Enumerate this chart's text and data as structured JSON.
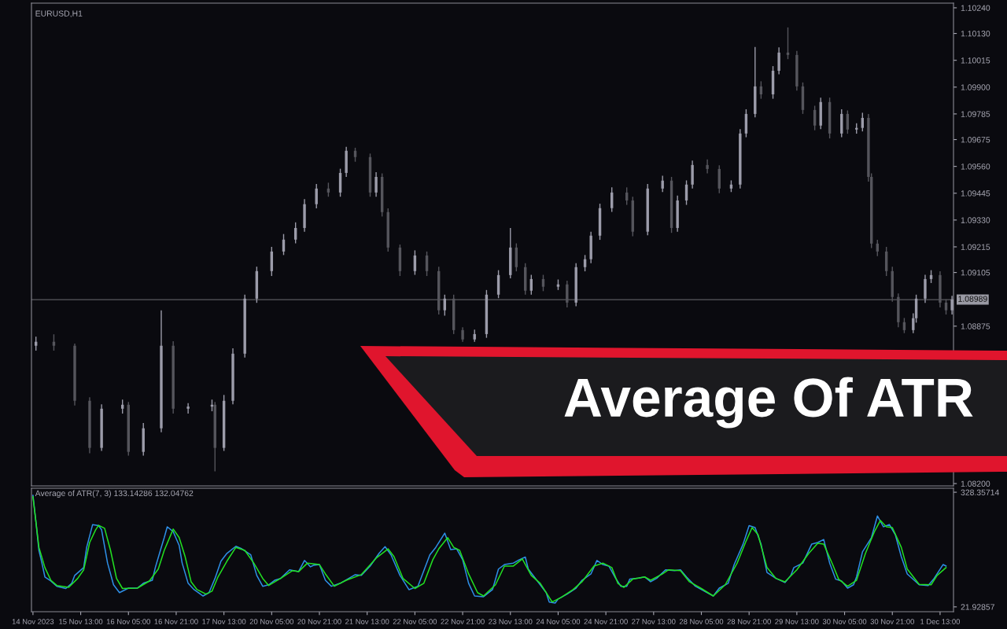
{
  "chart_data": [
    {
      "type": "candlestick",
      "title": "EURUSD,H1",
      "annotations": [
        "Average Of ATR"
      ],
      "tick_labels": "y",
      "grid": false,
      "categories": [
        null,
        null,
        null,
        null,
        null,
        null,
        null,
        null,
        null,
        null,
        null,
        null,
        null,
        null,
        null,
        null,
        null,
        null,
        null,
        null,
        null,
        null,
        null,
        null,
        null,
        null,
        null,
        null,
        null,
        null,
        null,
        null,
        null,
        null,
        null,
        null,
        null,
        null,
        null,
        null,
        null,
        null,
        null,
        null,
        null,
        null,
        null,
        null,
        null,
        null,
        null,
        null,
        null,
        null,
        null,
        null,
        null,
        null,
        null,
        null,
        null,
        null,
        null,
        null,
        null,
        null,
        null,
        null,
        null,
        null,
        null,
        null,
        null,
        null,
        null,
        null,
        null,
        null,
        null,
        null,
        null,
        null,
        null,
        null,
        null,
        null,
        null,
        null,
        null,
        null,
        null,
        null,
        null,
        null,
        null,
        null,
        null,
        null,
        null,
        null,
        null,
        null,
        null,
        null,
        null,
        null,
        null,
        null,
        null,
        null,
        null,
        null,
        null,
        null,
        null,
        null,
        null,
        null,
        null,
        null,
        null,
        null,
        null,
        null,
        null,
        null,
        null,
        null,
        null,
        null,
        null,
        null,
        null,
        null,
        null,
        null,
        null,
        null,
        null,
        null,
        null,
        null,
        null,
        null,
        null,
        null,
        null,
        null,
        null,
        null,
        null,
        null,
        null,
        null,
        null,
        null,
        null,
        null,
        null,
        null,
        null,
        null,
        null,
        null,
        null,
        null,
        null,
        null,
        null,
        null,
        null,
        null,
        null,
        null,
        null,
        null,
        null,
        null,
        null,
        null,
        null,
        null,
        null,
        null,
        null,
        null,
        null,
        null,
        null,
        null,
        null,
        null,
        null,
        null,
        null,
        null,
        null,
        null,
        null,
        null,
        null,
        null,
        null,
        null,
        null,
        null,
        null,
        null,
        null,
        null,
        null,
        null,
        null,
        null,
        null,
        null,
        null,
        null,
        null,
        null,
        null,
        null,
        null,
        null,
        null,
        null,
        null,
        null,
        null,
        null,
        null,
        null,
        null,
        null,
        null,
        null,
        null,
        null,
        null,
        null,
        null,
        null,
        null,
        null,
        null,
        null,
        null,
        null,
        null,
        null,
        null,
        null,
        null,
        null,
        null,
        null,
        null,
        null,
        null,
        null,
        null,
        null,
        null,
        null,
        null,
        null,
        null,
        null,
        null,
        null,
        null,
        null,
        null,
        null,
        null,
        null,
        null,
        null,
        null,
        null,
        null,
        null,
        null,
        null,
        null,
        null,
        null,
        null,
        null,
        null,
        null,
        null,
        null,
        null,
        null,
        null,
        null,
        null,
        null,
        null,
        null,
        null,
        null,
        null,
        null,
        null,
        null,
        null,
        null
      ],
      "ohlc": [
        null,
        [
          1.08791,
          1.0883,
          1.0877,
          1.08808
        ],
        null,
        null,
        null,
        null,
        null,
        [
          1.08808,
          1.0884,
          1.0877,
          1.08791
        ],
        null,
        null,
        null,
        null,
        null,
        null,
        [
          1.08791,
          1.088,
          1.08535,
          1.08555
        ],
        null,
        null,
        null,
        null,
        [
          1.08555,
          1.0857,
          1.0833,
          1.08353
        ],
        null,
        null,
        null,
        [
          1.08353,
          1.0854,
          1.0834,
          1.08521
        ],
        null,
        null,
        null,
        null,
        null,
        null,
        [
          1.08521,
          1.0856,
          1.085,
          1.08538
        ],
        null,
        [
          1.08538,
          1.0855,
          1.0832,
          1.08336
        ],
        null,
        null,
        null,
        null,
        [
          1.08336,
          1.0846,
          1.0832,
          1.08437
        ],
        null,
        null,
        null,
        null,
        null,
        [
          1.08437,
          1.08943,
          1.0842,
          1.08791
        ],
        null,
        null,
        null,
        [
          1.08791,
          1.0881,
          1.085,
          1.08521
        ],
        null,
        null,
        null,
        null,
        [
          1.08521,
          1.08545,
          1.085,
          1.0853
        ],
        null,
        null,
        null,
        null,
        null,
        null,
        null,
        [
          1.0853,
          1.0856,
          1.0851,
          1.08538
        ],
        [
          1.08538,
          1.0855,
          1.08252,
          1.08353
        ],
        null,
        null,
        [
          1.08353,
          1.0858,
          1.0834,
          1.08555
        ],
        null,
        null,
        [
          1.08555,
          1.0878,
          1.0854,
          1.08757
        ],
        null,
        null,
        null,
        [
          1.08757,
          1.0901,
          1.0874,
          1.08993
        ],
        null,
        null,
        null,
        [
          1.08993,
          1.0913,
          1.08975,
          1.09111
        ],
        null,
        null,
        null,
        null,
        [
          1.09111,
          1.09215,
          1.0909,
          1.09195
        ],
        null,
        null,
        null,
        [
          1.09195,
          1.0927,
          1.0918,
          1.09246
        ],
        null,
        null,
        null,
        [
          1.09246,
          1.0932,
          1.0923,
          1.09296
        ],
        null,
        null,
        [
          1.09296,
          1.0942,
          1.0928,
          1.09398
        ],
        null,
        null,
        null,
        [
          1.09398,
          1.09485,
          1.0938,
          1.09465
        ],
        null,
        null,
        null,
        [
          1.09465,
          1.0949,
          1.0943,
          1.09448
        ],
        null,
        null,
        null,
        [
          1.09448,
          1.0955,
          1.0943,
          1.09532
        ],
        null,
        [
          1.09532,
          1.09644,
          1.09515,
          1.09627
        ],
        null,
        null,
        [
          1.09627,
          1.0964,
          1.0958,
          1.096
        ],
        null,
        null,
        null,
        null,
        [
          1.096,
          1.09615,
          1.0943,
          1.09448
        ],
        null,
        [
          1.09448,
          1.09535,
          1.0943,
          1.09515
        ],
        null,
        [
          1.09515,
          1.0953,
          1.09345,
          1.09364
        ],
        null,
        [
          1.09364,
          1.0938,
          1.09195,
          1.09212
        ],
        null,
        null,
        null,
        [
          1.09212,
          1.09225,
          1.0909,
          1.09111
        ],
        null,
        null,
        null,
        null,
        [
          1.09111,
          1.092,
          1.09095,
          1.09178
        ],
        null,
        null,
        null,
        [
          1.09178,
          1.09195,
          1.0909,
          1.09111
        ],
        null,
        null,
        null,
        [
          1.09111,
          1.0913,
          1.08925,
          1.08943
        ],
        null,
        [
          1.08943,
          1.0901,
          1.0892,
          1.08993
        ],
        null,
        null,
        [
          1.08993,
          1.0901,
          1.08841,
          1.08858
        ],
        null,
        null,
        [
          1.08858,
          1.0887,
          1.08808,
          1.08818
        ],
        null,
        null,
        null,
        [
          1.08818,
          1.0886,
          1.08808,
          1.08841
        ],
        null,
        null,
        null,
        [
          1.08841,
          1.0903,
          1.08825,
          1.0901
        ],
        null,
        null,
        null,
        [
          1.0901,
          1.09115,
          1.08995,
          1.09094
        ],
        null,
        null,
        null,
        [
          1.09094,
          1.09296,
          1.0908,
          1.09212
        ],
        null,
        [
          1.09212,
          1.0923,
          1.0911,
          1.09128
        ],
        null,
        null,
        [
          1.09128,
          1.09145,
          1.0901,
          1.09027
        ],
        null,
        [
          1.09027,
          1.09095,
          1.0901,
          1.09077
        ],
        null,
        null,
        null,
        [
          1.09077,
          1.09095,
          1.09025,
          1.09044
        ],
        null,
        null,
        null,
        null,
        [
          1.09044,
          1.09075,
          1.0903,
          1.09054
        ],
        null,
        null,
        [
          1.09054,
          1.0907,
          1.08955,
          1.08976
        ],
        null,
        null,
        [
          1.08976,
          1.09145,
          1.0896,
          1.09128
        ],
        null,
        null,
        [
          1.09128,
          1.0918,
          1.0911,
          1.09162
        ],
        null,
        [
          1.09162,
          1.0928,
          1.09145,
          1.09263
        ],
        null,
        null,
        [
          1.09263,
          1.094,
          1.09245,
          1.09381
        ],
        null,
        null,
        null,
        [
          1.09381,
          1.0947,
          1.09365,
          1.09448
        ],
        null,
        null,
        null,
        null,
        [
          1.09448,
          1.0947,
          1.09395,
          1.09414
        ],
        null,
        [
          1.09414,
          1.0943,
          1.0926,
          1.0928
        ],
        null,
        null,
        null,
        null,
        [
          1.0928,
          1.09485,
          1.09265,
          1.09465
        ],
        null,
        null,
        null,
        null,
        [
          1.09465,
          1.0952,
          1.0945,
          1.09499
        ],
        null,
        null,
        [
          1.09499,
          1.09515,
          1.09275,
          1.09296
        ],
        null,
        [
          1.09296,
          1.09435,
          1.0928,
          1.09414
        ],
        null,
        null,
        [
          1.09414,
          1.095,
          1.09395,
          1.09482
        ],
        null,
        [
          1.09482,
          1.09585,
          1.09465,
          1.09566
        ],
        null,
        null,
        null,
        null,
        [
          1.09566,
          1.0959,
          1.0953,
          1.09549
        ],
        null,
        null,
        null,
        [
          1.09549,
          1.09565,
          1.09445,
          1.09465
        ],
        null,
        null,
        null,
        [
          1.09465,
          1.095,
          1.0945,
          1.09482
        ],
        null,
        null,
        [
          1.09482,
          1.0972,
          1.09465,
          1.09701
        ],
        null,
        [
          1.09701,
          1.09805,
          1.09685,
          1.09785
        ],
        null,
        null,
        [
          1.09785,
          1.10072,
          1.0977,
          1.09903
        ],
        null,
        [
          1.09903,
          1.09925,
          1.0985,
          1.09869
        ],
        null,
        null,
        null,
        [
          1.09869,
          1.0999,
          1.0985,
          1.0997
        ],
        null,
        [
          1.0997,
          1.1007,
          1.09955,
          1.10048
        ],
        null,
        null,
        [
          1.10048,
          1.10156,
          1.1002,
          1.10038
        ],
        null,
        null,
        [
          1.10038,
          1.10055,
          1.09885,
          1.09903
        ],
        null,
        [
          1.09903,
          1.0992,
          1.09785,
          1.09802
        ],
        null,
        null,
        null,
        [
          1.09802,
          1.0982,
          1.09715,
          1.09735
        ],
        null,
        [
          1.09735,
          1.09855,
          1.0972,
          1.09836
        ],
        null,
        null,
        [
          1.09836,
          1.09855,
          1.0968,
          1.09701
        ],
        null,
        null,
        null,
        [
          1.09701,
          1.09805,
          1.09685,
          1.09785
        ],
        null,
        [
          1.09785,
          1.098,
          1.097,
          1.09718
        ],
        null,
        null,
        [
          1.09718,
          1.09745,
          1.097,
          1.09725
        ],
        null,
        [
          1.09725,
          1.0979,
          1.0971,
          1.09768
        ],
        null,
        [
          1.09768,
          1.09785,
          1.09495,
          1.09515
        ],
        [
          1.09515,
          1.0953,
          1.0921,
          1.09229
        ],
        null,
        [
          1.09229,
          1.09245,
          1.09175,
          1.09195
        ],
        null,
        null,
        [
          1.09195,
          1.09215,
          1.0909,
          1.09111
        ],
        null,
        [
          1.09111,
          1.0913,
          1.0898,
          1.09
        ],
        null,
        [
          1.09,
          1.09015,
          1.0887,
          1.08892
        ],
        null,
        [
          1.08892,
          1.0891,
          1.08845,
          1.08858
        ],
        null,
        null,
        [
          1.08858,
          1.0893,
          1.08845,
          1.08909
        ],
        [
          1.08909,
          1.0901,
          1.0889,
          1.08993
        ],
        null,
        null,
        [
          1.08993,
          1.09095,
          1.08975,
          1.09077
        ],
        null,
        [
          1.09077,
          1.09115,
          1.0906,
          1.09094
        ],
        null,
        null,
        [
          1.09094,
          1.0911,
          1.08955,
          1.08976
        ],
        null,
        [
          1.08976,
          1.0899,
          1.08925,
          1.08943
        ],
        null,
        [
          1.08943,
          1.09005,
          1.08925,
          1.08989
        ]
      ],
      "ylim": [
        1.0819,
        1.1026
      ],
      "yticks": [
        {
          "value": 1.1024,
          "label": "1.10240"
        },
        {
          "value": 1.1013,
          "label": "1.10130"
        },
        {
          "value": 1.10015,
          "label": "1.10015"
        },
        {
          "value": 1.099,
          "label": "1.09900"
        },
        {
          "value": 1.09785,
          "label": "1.09785"
        },
        {
          "value": 1.09675,
          "label": "1.09675"
        },
        {
          "value": 1.0956,
          "label": "1.09560"
        },
        {
          "value": 1.09445,
          "label": "1.09445"
        },
        {
          "value": 1.0933,
          "label": "1.09330"
        },
        {
          "value": 1.09215,
          "label": "1.09215"
        },
        {
          "value": 1.09105,
          "label": "1.09105"
        },
        {
          "value": 1.08875,
          "label": "1.08875"
        },
        {
          "value": 1.082,
          "label": "1.08200"
        }
      ],
      "ref_lines": [
        {
          "axis": "y",
          "value": 1.08989,
          "label": "1.08989",
          "color": "#5a5a60"
        }
      ]
    },
    {
      "type": "line",
      "title": "Average of ATR(7, 3) 133.14286 132.04762",
      "grid": false,
      "marker": "none",
      "line_style": "solid",
      "categories": [
        "14 Nov 2023",
        null,
        null,
        null,
        null,
        null,
        null,
        null,
        null,
        null,
        null,
        null,
        null,
        null,
        null,
        null,
        "15 Nov 13:00",
        null,
        null,
        null,
        null,
        null,
        null,
        null,
        null,
        null,
        null,
        null,
        null,
        null,
        null,
        null,
        "16 Nov 05:00",
        null,
        null,
        null,
        null,
        null,
        null,
        null,
        null,
        null,
        null,
        null,
        null,
        null,
        null,
        null,
        "16 Nov 21:00",
        null,
        null,
        null,
        null,
        null,
        null,
        null,
        null,
        null,
        null,
        null,
        null,
        null,
        null,
        null,
        "17 Nov 13:00",
        null,
        null,
        null,
        null,
        null,
        null,
        null,
        null,
        null,
        null,
        null,
        null,
        null,
        null,
        null,
        "20 Nov 05:00",
        null,
        null,
        null,
        null,
        null,
        null,
        null,
        null,
        null,
        null,
        null,
        null,
        null,
        null,
        null,
        "20 Nov 21:00",
        null,
        null,
        null,
        null,
        null,
        null,
        null,
        null,
        null,
        null,
        null,
        null,
        null,
        null,
        null,
        "21 Nov 13:00",
        null,
        null,
        null,
        null,
        null,
        null,
        null,
        null,
        null,
        null,
        null,
        null,
        null,
        null,
        null,
        "22 Nov 05:00",
        null,
        null,
        null,
        null,
        null,
        null,
        null,
        null,
        null,
        null,
        null,
        null,
        null,
        null,
        null,
        "22 Nov 21:00",
        null,
        null,
        null,
        null,
        null,
        null,
        null,
        null,
        null,
        null,
        null,
        null,
        null,
        null,
        null,
        "23 Nov 13:00",
        null,
        null,
        null,
        null,
        null,
        null,
        null,
        null,
        null,
        null,
        null,
        null,
        null,
        null,
        null,
        "24 Nov 05:00",
        null,
        null,
        null,
        null,
        null,
        null,
        null,
        null,
        null,
        null,
        null,
        null,
        null,
        null,
        null,
        "24 Nov 21:00",
        null,
        null,
        null,
        null,
        null,
        null,
        null,
        null,
        null,
        null,
        null,
        null,
        null,
        null,
        null,
        "27 Nov 13:00",
        null,
        null,
        null,
        null,
        null,
        null,
        null,
        null,
        null,
        null,
        null,
        null,
        null,
        null,
        null,
        "28 Nov 05:00",
        null,
        null,
        null,
        null,
        null,
        null,
        null,
        null,
        null,
        null,
        null,
        null,
        null,
        null,
        null,
        "28 Nov 21:00",
        null,
        null,
        null,
        null,
        null,
        null,
        null,
        null,
        null,
        null,
        null,
        null,
        null,
        null,
        null,
        "29 Nov 13:00",
        null,
        null,
        null,
        null,
        null,
        null,
        null,
        null,
        null,
        null,
        null,
        null,
        null,
        null,
        null,
        "30 Nov 05:00",
        null,
        null,
        null,
        null,
        null,
        null,
        null,
        null,
        null,
        null,
        null,
        null,
        null,
        null,
        null,
        "30 Nov 21:00",
        null,
        null,
        null,
        null,
        null,
        null,
        null,
        null,
        null,
        null,
        null,
        null,
        null,
        null,
        null,
        "1 Dec 13:00",
        null,
        null,
        null,
        null
      ],
      "ylim": [
        9,
        339
      ],
      "yticks": [
        328.35714,
        21.92857
      ],
      "series": [
        {
          "color": "#2e8fe6",
          "values": [
            320,
            249,
            173,
            139,
            102,
            null,
            91,
            null,
            77,
            null,
            null,
            71,
            null,
            85,
            106,
            null,
            null,
            127,
            181,
            null,
            242,
            null,
            239,
            228,
            null,
            139,
            null,
            81,
            null,
            60,
            null,
            null,
            72,
            null,
            null,
            72,
            null,
            85,
            null,
            null,
            93,
            127,
            null,
            181,
            207,
            236,
            null,
            223,
            null,
            186,
            139,
            null,
            85,
            null,
            68,
            null,
            null,
            51,
            null,
            60,
            null,
            98,
            null,
            144,
            null,
            165,
            null,
            null,
            184,
            null,
            177,
            null,
            null,
            161,
            null,
            106,
            null,
            77,
            null,
            81,
            null,
            93,
            null,
            98,
            null,
            null,
            121,
            null,
            null,
            116,
            null,
            146,
            null,
            129,
            133,
            null,
            135,
            null,
            93,
            null,
            77,
            null,
            null,
            85,
            null,
            null,
            null,
            null,
            108,
            null,
            106,
            null,
            null,
            131,
            null,
            null,
            165,
            null,
            183,
            null,
            161,
            null,
            null,
            106,
            null,
            null,
            68,
            null,
            null,
            77,
            null,
            null,
            null,
            161,
            null,
            181,
            null,
            null,
            219,
            null,
            175,
            null,
            177,
            null,
            148,
            null,
            85,
            null,
            51,
            null,
            null,
            49,
            null,
            null,
            68,
            null,
            123,
            null,
            135,
            null,
            null,
            139,
            null,
            148,
            null,
            155,
            123,
            null,
            102,
            null,
            81,
            null,
            60,
            35,
            null,
            32,
            43,
            null,
            null,
            56,
            null,
            null,
            72,
            null,
            93,
            null,
            null,
            110,
            null,
            146,
            null,
            135,
            null,
            131,
            null,
            102,
            null,
            77,
            null,
            77,
            96,
            null,
            null,
            99,
            null,
            102,
            null,
            89,
            null,
            98,
            null,
            null,
            121,
            null,
            null,
            119,
            null,
            121,
            null,
            102,
            null,
            null,
            77,
            null,
            null,
            64,
            null,
            null,
            51,
            null,
            72,
            null,
            null,
            85,
            null,
            135,
            null,
            null,
            190,
            null,
            239,
            null,
            234,
            null,
            190,
            null,
            114,
            null,
            null,
            98,
            null,
            null,
            87,
            null,
            106,
            127,
            null,
            null,
            139,
            null,
            null,
            190,
            null,
            194,
            null,
            202,
            null,
            139,
            null,
            96,
            null,
            91,
            null,
            72,
            null,
            81,
            102,
            null,
            169,
            null,
            null,
            207,
            null,
            265,
            null,
            236,
            null,
            242,
            null,
            215,
            null,
            156,
            null,
            110,
            null,
            null,
            null,
            81,
            null,
            null,
            79,
            null,
            98,
            null,
            null,
            135,
            131,
            null,
            null
          ]
        },
        {
          "color": "#22e022",
          "values": [
            316,
            249,
            181,
            null,
            127,
            null,
            93,
            null,
            79,
            null,
            null,
            null,
            74,
            null,
            null,
            98,
            null,
            121,
            null,
            194,
            null,
            228,
            240,
            null,
            232,
            null,
            173,
            null,
            98,
            null,
            71,
            null,
            null,
            null,
            null,
            72,
            null,
            null,
            null,
            91,
            null,
            null,
            123,
            null,
            173,
            null,
            null,
            230,
            null,
            207,
            null,
            156,
            null,
            89,
            null,
            68,
            null,
            null,
            56,
            null,
            64,
            null,
            102,
            null,
            null,
            144,
            null,
            null,
            181,
            null,
            null,
            173,
            null,
            null,
            139,
            null,
            null,
            98,
            null,
            79,
            null,
            null,
            null,
            98,
            null,
            null,
            null,
            119,
            null,
            116,
            null,
            null,
            139,
            null,
            null,
            null,
            135,
            null,
            110,
            null,
            null,
            77,
            null,
            null,
            null,
            93,
            null,
            null,
            null,
            null,
            108,
            null,
            null,
            null,
            null,
            152,
            null,
            null,
            null,
            177,
            null,
            156,
            null,
            null,
            98,
            null,
            null,
            null,
            71,
            null,
            null,
            85,
            null,
            null,
            148,
            null,
            177,
            null,
            null,
            207,
            null,
            181,
            null,
            173,
            null,
            null,
            110,
            null,
            null,
            60,
            null,
            51,
            null,
            null,
            null,
            81,
            null,
            null,
            131,
            null,
            null,
            131,
            null,
            null,
            150,
            null,
            null,
            106,
            null,
            null,
            85,
            null,
            null,
            null,
            35,
            null,
            null,
            47,
            null,
            null,
            null,
            68,
            null,
            null,
            89,
            null,
            null,
            null,
            131,
            null,
            null,
            139,
            null,
            null,
            127,
            null,
            85,
            null,
            74,
            null,
            null,
            96,
            null,
            null,
            null,
            102,
            null,
            93,
            null,
            null,
            null,
            110,
            null,
            121,
            null,
            null,
            null,
            119,
            null,
            null,
            89,
            null,
            null,
            null,
            71,
            null,
            null,
            null,
            51,
            null,
            null,
            null,
            81,
            null,
            null,
            null,
            139,
            null,
            null,
            198,
            null,
            234,
            null,
            215,
            null,
            null,
            127,
            null,
            null,
            98,
            null,
            null,
            89,
            null,
            null,
            null,
            121,
            null,
            null,
            null,
            165,
            null,
            null,
            192,
            null,
            190,
            null,
            null,
            135,
            null,
            96,
            null,
            null,
            77,
            null,
            null,
            93,
            null,
            null,
            165,
            null,
            null,
            223,
            null,
            253,
            null,
            236,
            null,
            234,
            null,
            null,
            181,
            null,
            123,
            null,
            null,
            null,
            82,
            null,
            null,
            null,
            81,
            null,
            106,
            null,
            null,
            127,
            null,
            null
          ]
        }
      ]
    }
  ]
}
